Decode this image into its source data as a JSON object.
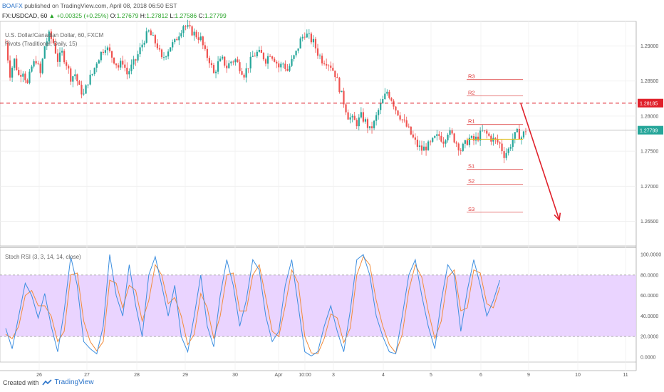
{
  "header": {
    "author": "BOAFX",
    "published": "published on TradingView.com, April 08, 2018 06:50 EST",
    "symbol": "FX:USDCAD, 60",
    "open_label": "1.27799",
    "change": "+0.00325 (+0.25%)",
    "o_label": "O:",
    "o": "1.27679",
    "h_label": "H:",
    "h": "1.27812",
    "l_label": "L:",
    "l": "1.27586",
    "c_label": "C:",
    "c": "1.27799"
  },
  "legend": {
    "main": "U.S. Dollar/Canadian Dollar, 60, FXCM",
    "pivots": "Pivots (Traditional, Daily, 15)",
    "stoch": "Stoch RSI (3, 3, 14, 14, close)"
  },
  "footer": {
    "created": "Created with",
    "brand": "TradingView"
  },
  "colors": {
    "up": "#26a69a",
    "down": "#ef5350",
    "pivot": "#e05050",
    "k_line": "#3d8fe0",
    "d_line": "#f28c3c",
    "band": "#e6ccff",
    "resistance": "#e0202a",
    "arrow": "#e0202a"
  },
  "chart_data": [
    {
      "type": "candlestick",
      "title": "U.S. Dollar/Canadian Dollar, 60, FXCM",
      "x_ticks": [
        "26",
        "27",
        "28",
        "29",
        "30",
        "Apr",
        "10:00",
        "3",
        "4",
        "5",
        "6",
        "9",
        "10",
        "11"
      ],
      "y_ticks": [
        "1.29000",
        "1.28500",
        "1.28000",
        "1.27500",
        "1.27000",
        "1.26500"
      ],
      "ylim": [
        1.2615,
        1.2935
      ],
      "price_path": [
        [
          0,
          1.2905
        ],
        [
          2,
          1.286
        ],
        [
          4,
          1.288
        ],
        [
          6,
          1.2858
        ],
        [
          8,
          1.2865
        ],
        [
          10,
          1.2845
        ],
        [
          12,
          1.287
        ],
        [
          14,
          1.288
        ],
        [
          16,
          1.286
        ],
        [
          18,
          1.29
        ],
        [
          20,
          1.2915
        ],
        [
          22,
          1.2905
        ],
        [
          24,
          1.288
        ],
        [
          26,
          1.289
        ],
        [
          28,
          1.2875
        ],
        [
          30,
          1.2855
        ],
        [
          32,
          1.286
        ],
        [
          34,
          1.284
        ],
        [
          36,
          1.283
        ],
        [
          38,
          1.285
        ],
        [
          40,
          1.286
        ],
        [
          42,
          1.2878
        ],
        [
          44,
          1.289
        ],
        [
          46,
          1.29
        ],
        [
          48,
          1.289
        ],
        [
          50,
          1.288
        ],
        [
          52,
          1.287
        ],
        [
          54,
          1.2878
        ],
        [
          56,
          1.286
        ],
        [
          58,
          1.287
        ],
        [
          60,
          1.288
        ],
        [
          62,
          1.2895
        ],
        [
          64,
          1.291
        ],
        [
          66,
          1.292
        ],
        [
          68,
          1.291
        ],
        [
          70,
          1.29
        ],
        [
          72,
          1.288
        ],
        [
          74,
          1.289
        ],
        [
          76,
          1.29
        ],
        [
          78,
          1.2905
        ],
        [
          80,
          1.2918
        ],
        [
          82,
          1.293
        ],
        [
          84,
          1.2925
        ],
        [
          86,
          1.292
        ],
        [
          88,
          1.2915
        ],
        [
          90,
          1.291
        ],
        [
          92,
          1.289
        ],
        [
          94,
          1.288
        ],
        [
          96,
          1.286
        ],
        [
          98,
          1.2875
        ],
        [
          100,
          1.288
        ],
        [
          102,
          1.287
        ],
        [
          104,
          1.2878
        ],
        [
          106,
          1.288
        ],
        [
          108,
          1.287
        ],
        [
          110,
          1.286
        ],
        [
          112,
          1.2872
        ],
        [
          114,
          1.2885
        ],
        [
          116,
          1.289
        ],
        [
          118,
          1.2888
        ],
        [
          120,
          1.288
        ],
        [
          122,
          1.289
        ],
        [
          124,
          1.2882
        ],
        [
          126,
          1.287
        ],
        [
          128,
          1.2875
        ],
        [
          130,
          1.2865
        ],
        [
          132,
          1.2878
        ],
        [
          134,
          1.289
        ],
        [
          136,
          1.2908
        ],
        [
          138,
          1.2918
        ],
        [
          140,
          1.2912
        ],
        [
          142,
          1.2905
        ],
        [
          144,
          1.289
        ],
        [
          146,
          1.288
        ],
        [
          148,
          1.2878
        ],
        [
          150,
          1.2872
        ],
        [
          152,
          1.286
        ],
        [
          154,
          1.284
        ],
        [
          156,
          1.282
        ],
        [
          158,
          1.28
        ],
        [
          160,
          1.2795
        ],
        [
          162,
          1.279
        ],
        [
          164,
          1.28
        ],
        [
          166,
          1.2792
        ],
        [
          168,
          1.278
        ],
        [
          170,
          1.279
        ],
        [
          172,
          1.2808
        ],
        [
          174,
          1.2822
        ],
        [
          176,
          1.2835
        ],
        [
          178,
          1.2825
        ],
        [
          180,
          1.281
        ],
        [
          182,
          1.28
        ],
        [
          184,
          1.279
        ],
        [
          186,
          1.278
        ],
        [
          188,
          1.2768
        ],
        [
          190,
          1.2758
        ],
        [
          192,
          1.2752
        ],
        [
          194,
          1.2756
        ],
        [
          196,
          1.276
        ],
        [
          198,
          1.2768
        ],
        [
          200,
          1.2772
        ],
        [
          202,
          1.2765
        ],
        [
          204,
          1.2778
        ],
        [
          206,
          1.2772
        ],
        [
          208,
          1.2762
        ],
        [
          210,
          1.2752
        ],
        [
          212,
          1.276
        ],
        [
          214,
          1.2768
        ],
        [
          216,
          1.2765
        ],
        [
          218,
          1.277
        ],
        [
          220,
          1.2778
        ],
        [
          222,
          1.2774
        ],
        [
          224,
          1.2768
        ],
        [
          226,
          1.2765
        ],
        [
          228,
          1.276
        ],
        [
          230,
          1.2745
        ],
        [
          232,
          1.2752
        ],
        [
          234,
          1.2768
        ],
        [
          236,
          1.2776
        ],
        [
          238,
          1.277
        ],
        [
          240,
          1.278
        ]
      ],
      "pivots": [
        {
          "name": "R3",
          "value": 1.2852
        },
        {
          "name": "R2",
          "value": 1.2829
        },
        {
          "name": "R1",
          "value": 1.2788
        },
        {
          "name": "S1",
          "value": 1.2724
        },
        {
          "name": "S2",
          "value": 1.2703
        },
        {
          "name": "S3",
          "value": 1.2663
        }
      ],
      "pivot_point": 1.2767,
      "resistance_level": 1.28185,
      "current_price": 1.27799,
      "price_tags": {
        "resistance": "1.28185",
        "current": "1.27799"
      },
      "projection": {
        "from": 1.2818,
        "to": 1.2652
      }
    },
    {
      "type": "line",
      "title": "Stoch RSI (3, 3, 14, 14, close)",
      "y_ticks": [
        "100.0000",
        "80.0000",
        "60.0000",
        "40.0000",
        "20.0000",
        "0.0000"
      ],
      "ylim": [
        -5,
        105
      ],
      "band": [
        20,
        80
      ],
      "k_path": [
        [
          0,
          28
        ],
        [
          3,
          8
        ],
        [
          6,
          40
        ],
        [
          9,
          72
        ],
        [
          12,
          60
        ],
        [
          15,
          38
        ],
        [
          18,
          62
        ],
        [
          21,
          30
        ],
        [
          24,
          5
        ],
        [
          27,
          45
        ],
        [
          30,
          98
        ],
        [
          33,
          70
        ],
        [
          36,
          15
        ],
        [
          39,
          8
        ],
        [
          42,
          3
        ],
        [
          45,
          30
        ],
        [
          48,
          100
        ],
        [
          51,
          60
        ],
        [
          54,
          40
        ],
        [
          57,
          90
        ],
        [
          60,
          50
        ],
        [
          63,
          20
        ],
        [
          66,
          80
        ],
        [
          69,
          98
        ],
        [
          72,
          70
        ],
        [
          75,
          40
        ],
        [
          78,
          70
        ],
        [
          81,
          20
        ],
        [
          84,
          5
        ],
        [
          87,
          40
        ],
        [
          90,
          80
        ],
        [
          93,
          30
        ],
        [
          96,
          10
        ],
        [
          99,
          60
        ],
        [
          102,
          95
        ],
        [
          105,
          70
        ],
        [
          108,
          30
        ],
        [
          111,
          55
        ],
        [
          114,
          95
        ],
        [
          117,
          85
        ],
        [
          120,
          40
        ],
        [
          123,
          15
        ],
        [
          126,
          25
        ],
        [
          129,
          70
        ],
        [
          132,
          95
        ],
        [
          135,
          50
        ],
        [
          138,
          5
        ],
        [
          141,
          1
        ],
        [
          144,
          5
        ],
        [
          147,
          30
        ],
        [
          150,
          50
        ],
        [
          153,
          25
        ],
        [
          156,
          5
        ],
        [
          159,
          45
        ],
        [
          162,
          95
        ],
        [
          165,
          100
        ],
        [
          168,
          80
        ],
        [
          171,
          40
        ],
        [
          174,
          20
        ],
        [
          177,
          5
        ],
        [
          180,
          3
        ],
        [
          183,
          40
        ],
        [
          186,
          80
        ],
        [
          189,
          95
        ],
        [
          192,
          60
        ],
        [
          195,
          30
        ],
        [
          198,
          8
        ],
        [
          201,
          55
        ],
        [
          204,
          90
        ],
        [
          207,
          80
        ],
        [
          210,
          25
        ],
        [
          213,
          65
        ],
        [
          216,
          95
        ],
        [
          219,
          70
        ],
        [
          222,
          40
        ],
        [
          225,
          55
        ],
        [
          228,
          75
        ]
      ],
      "d_path": [
        [
          0,
          22
        ],
        [
          3,
          18
        ],
        [
          6,
          30
        ],
        [
          9,
          60
        ],
        [
          12,
          65
        ],
        [
          15,
          50
        ],
        [
          18,
          50
        ],
        [
          21,
          40
        ],
        [
          24,
          15
        ],
        [
          27,
          25
        ],
        [
          30,
          80
        ],
        [
          33,
          82
        ],
        [
          36,
          35
        ],
        [
          39,
          15
        ],
        [
          42,
          6
        ],
        [
          45,
          15
        ],
        [
          48,
          75
        ],
        [
          51,
          72
        ],
        [
          54,
          48
        ],
        [
          57,
          70
        ],
        [
          60,
          65
        ],
        [
          63,
          35
        ],
        [
          66,
          55
        ],
        [
          69,
          90
        ],
        [
          72,
          80
        ],
        [
          75,
          52
        ],
        [
          78,
          58
        ],
        [
          81,
          40
        ],
        [
          84,
          12
        ],
        [
          87,
          22
        ],
        [
          90,
          62
        ],
        [
          93,
          48
        ],
        [
          96,
          18
        ],
        [
          99,
          40
        ],
        [
          102,
          80
        ],
        [
          105,
          82
        ],
        [
          108,
          45
        ],
        [
          111,
          45
        ],
        [
          114,
          80
        ],
        [
          117,
          90
        ],
        [
          120,
          58
        ],
        [
          123,
          25
        ],
        [
          126,
          20
        ],
        [
          129,
          50
        ],
        [
          132,
          85
        ],
        [
          135,
          72
        ],
        [
          138,
          20
        ],
        [
          141,
          4
        ],
        [
          144,
          3
        ],
        [
          147,
          18
        ],
        [
          150,
          42
        ],
        [
          153,
          38
        ],
        [
          156,
          14
        ],
        [
          159,
          28
        ],
        [
          162,
          80
        ],
        [
          165,
          98
        ],
        [
          168,
          90
        ],
        [
          171,
          55
        ],
        [
          174,
          30
        ],
        [
          177,
          12
        ],
        [
          180,
          4
        ],
        [
          183,
          22
        ],
        [
          186,
          65
        ],
        [
          189,
          90
        ],
        [
          192,
          78
        ],
        [
          195,
          45
        ],
        [
          198,
          18
        ],
        [
          201,
          35
        ],
        [
          204,
          78
        ],
        [
          207,
          85
        ],
        [
          210,
          45
        ],
        [
          213,
          48
        ],
        [
          216,
          85
        ],
        [
          219,
          82
        ],
        [
          222,
          52
        ],
        [
          225,
          48
        ],
        [
          228,
          68
        ]
      ]
    }
  ]
}
